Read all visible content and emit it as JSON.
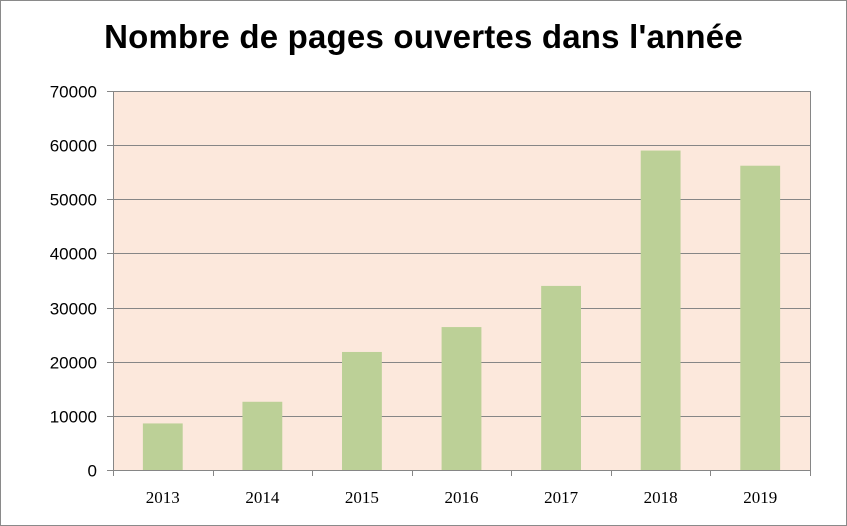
{
  "chart_data": {
    "type": "bar",
    "title": "Nombre de pages ouvertes dans l'année",
    "xlabel": "",
    "ylabel": "",
    "categories": [
      "2013",
      "2014",
      "2015",
      "2016",
      "2017",
      "2018",
      "2019"
    ],
    "values": [
      8600,
      12600,
      21800,
      26400,
      34000,
      59000,
      56200
    ],
    "ylim": [
      0,
      70000
    ],
    "yticks": [
      0,
      10000,
      20000,
      30000,
      40000,
      50000,
      60000,
      70000
    ],
    "yticks_labels": [
      "0",
      "10000",
      "20000",
      "30000",
      "40000",
      "50000",
      "60000",
      "70000"
    ],
    "grid": true,
    "legend": "none",
    "colors": {
      "bar": "#bcd097",
      "plot_background": "#fce8dc",
      "gridline": "#868686",
      "axis": "#868686"
    }
  }
}
